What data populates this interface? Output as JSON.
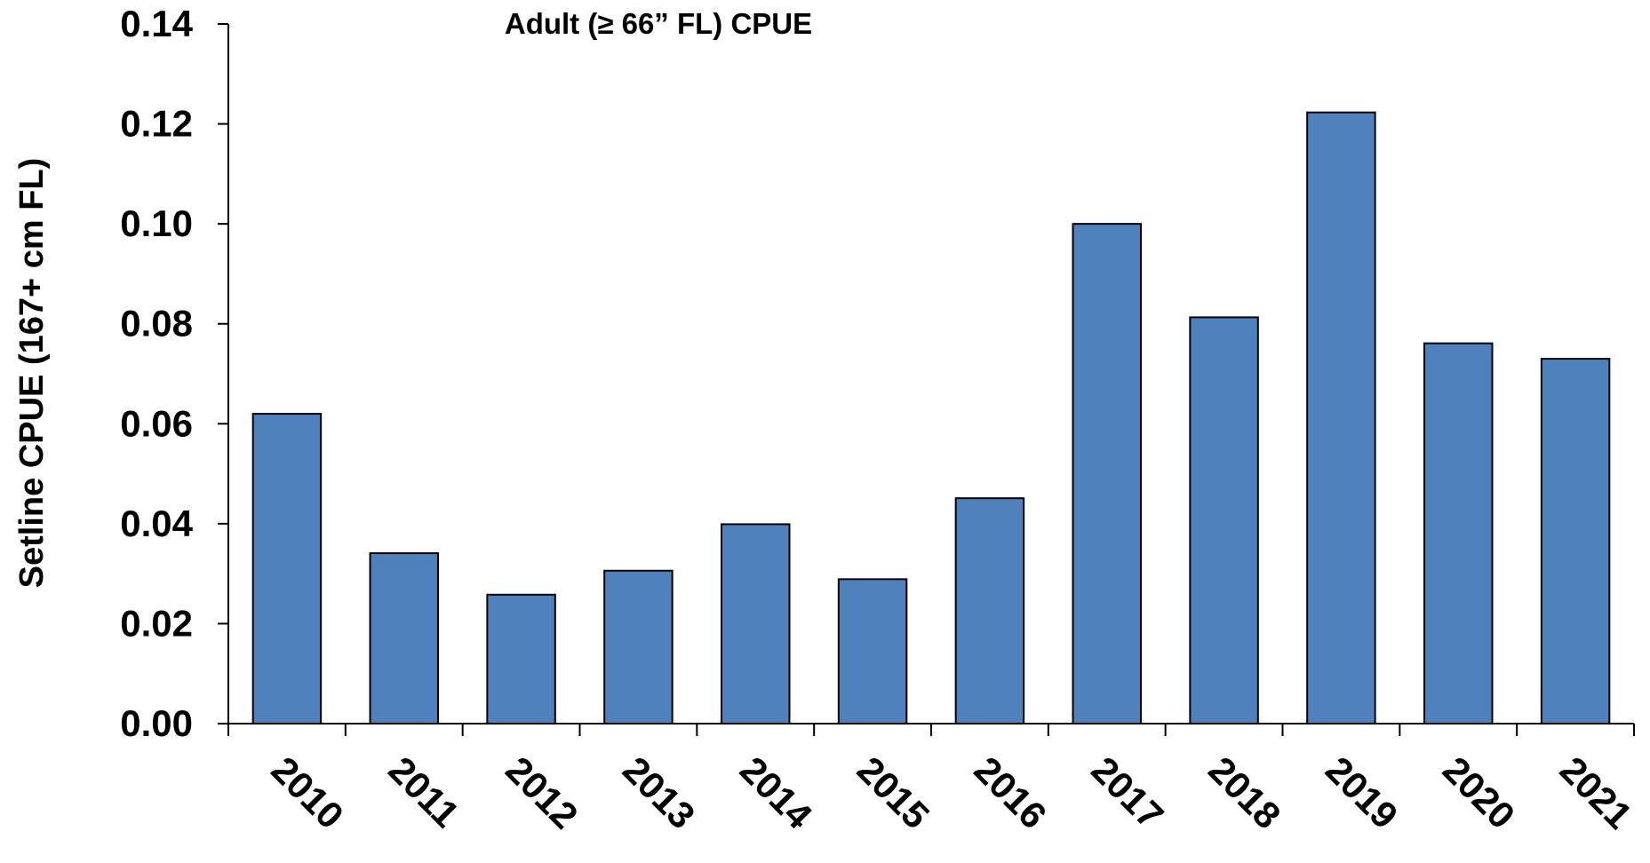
{
  "chart_data": {
    "type": "bar",
    "title": "Adult (≥ 66” FL) CPUE",
    "y_label": "Setline CPUE (167+ cm FL)",
    "categories": [
      "2010",
      "2011",
      "2012",
      "2013",
      "2014",
      "2015",
      "2016",
      "2017",
      "2018",
      "2019",
      "2020",
      "2021"
    ],
    "values": [
      0.062,
      0.0341,
      0.0258,
      0.0306,
      0.0399,
      0.0289,
      0.0451,
      0.1,
      0.0813,
      0.1223,
      0.0761,
      0.073
    ],
    "color": "#4f81bd",
    "ylim": [
      0,
      0.14
    ],
    "yticks": [
      {
        "value": 0,
        "label": "0.00"
      },
      {
        "value": 0.02,
        "label": "0.02"
      },
      {
        "value": 0.04,
        "label": "0.04"
      },
      {
        "value": 0.06,
        "label": "0.06"
      },
      {
        "value": 0.08,
        "label": "0.08"
      },
      {
        "value": 0.1,
        "label": "0.10"
      },
      {
        "value": 0.12,
        "label": "0.12"
      },
      {
        "value": 0.14,
        "label": "0.14"
      }
    ],
    "grid": false
  }
}
